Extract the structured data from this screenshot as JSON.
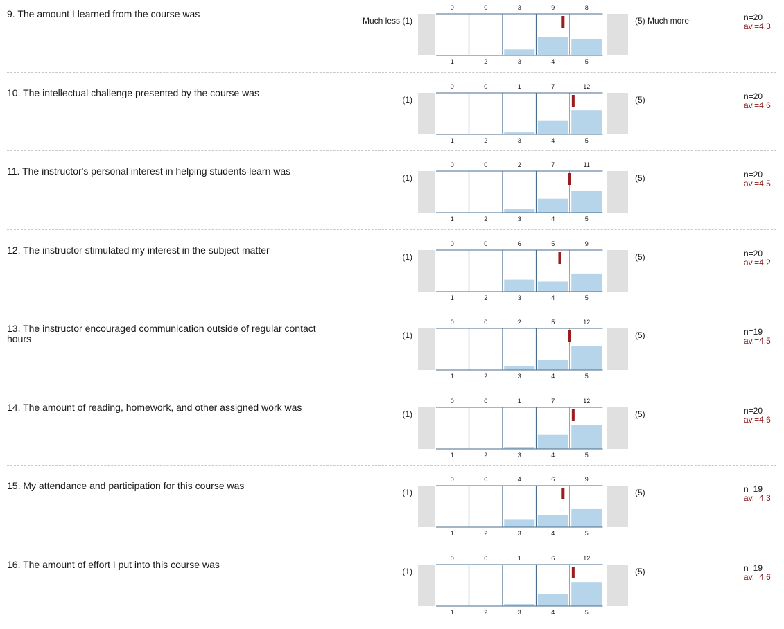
{
  "chart_data": [
    {
      "type": "bar",
      "question": "9. The amount I learned from the course was",
      "left_label": "Much less (1)",
      "right_label": "(5) Much more",
      "categories": [
        "1",
        "2",
        "3",
        "4",
        "5"
      ],
      "values": [
        0,
        0,
        3,
        9,
        8
      ],
      "n": "n=20",
      "avg": "av.=4,3",
      "avg_value": 4.3
    },
    {
      "type": "bar",
      "question": "10. The intellectual challenge presented by the course was",
      "left_label": "(1)",
      "right_label": "(5)",
      "categories": [
        "1",
        "2",
        "3",
        "4",
        "5"
      ],
      "values": [
        0,
        0,
        1,
        7,
        12
      ],
      "n": "n=20",
      "avg": "av.=4,6",
      "avg_value": 4.6
    },
    {
      "type": "bar",
      "question": "11. The instructor's personal interest in helping students learn was",
      "left_label": "(1)",
      "right_label": "(5)",
      "categories": [
        "1",
        "2",
        "3",
        "4",
        "5"
      ],
      "values": [
        0,
        0,
        2,
        7,
        11
      ],
      "n": "n=20",
      "avg": "av.=4,5",
      "avg_value": 4.5
    },
    {
      "type": "bar",
      "question": "12. The instructor stimulated my interest in the subject matter",
      "left_label": "(1)",
      "right_label": "(5)",
      "categories": [
        "1",
        "2",
        "3",
        "4",
        "5"
      ],
      "values": [
        0,
        0,
        6,
        5,
        9
      ],
      "n": "n=20",
      "avg": "av.=4,2",
      "avg_value": 4.2
    },
    {
      "type": "bar",
      "question": "13. The instructor encouraged communication outside of regular contact hours",
      "left_label": "(1)",
      "right_label": "(5)",
      "categories": [
        "1",
        "2",
        "3",
        "4",
        "5"
      ],
      "values": [
        0,
        0,
        2,
        5,
        12
      ],
      "n": "n=19",
      "avg": "av.=4,5",
      "avg_value": 4.5
    },
    {
      "type": "bar",
      "question": "14. The amount of reading, homework, and other assigned work was",
      "left_label": "(1)",
      "right_label": "(5)",
      "categories": [
        "1",
        "2",
        "3",
        "4",
        "5"
      ],
      "values": [
        0,
        0,
        1,
        7,
        12
      ],
      "n": "n=20",
      "avg": "av.=4,6",
      "avg_value": 4.6
    },
    {
      "type": "bar",
      "question": "15. My attendance and participation for this course was",
      "left_label": "(1)",
      "right_label": "(5)",
      "categories": [
        "1",
        "2",
        "3",
        "4",
        "5"
      ],
      "values": [
        0,
        0,
        4,
        6,
        9
      ],
      "n": "n=19",
      "avg": "av.=4,3",
      "avg_value": 4.3
    },
    {
      "type": "bar",
      "question": "16. The amount of effort I put into this course was",
      "left_label": "(1)",
      "right_label": "(5)",
      "categories": [
        "1",
        "2",
        "3",
        "4",
        "5"
      ],
      "values": [
        0,
        0,
        1,
        6,
        12
      ],
      "n": "n=19",
      "avg": "av.=4,6",
      "avg_value": 4.6
    }
  ],
  "colors": {
    "bar": "#b6d4ea",
    "axis": "#4a6e8c",
    "gray": "#e0e0e0",
    "avg_marker": "#9b1c1c",
    "avg_text": "#8b1a1a"
  }
}
